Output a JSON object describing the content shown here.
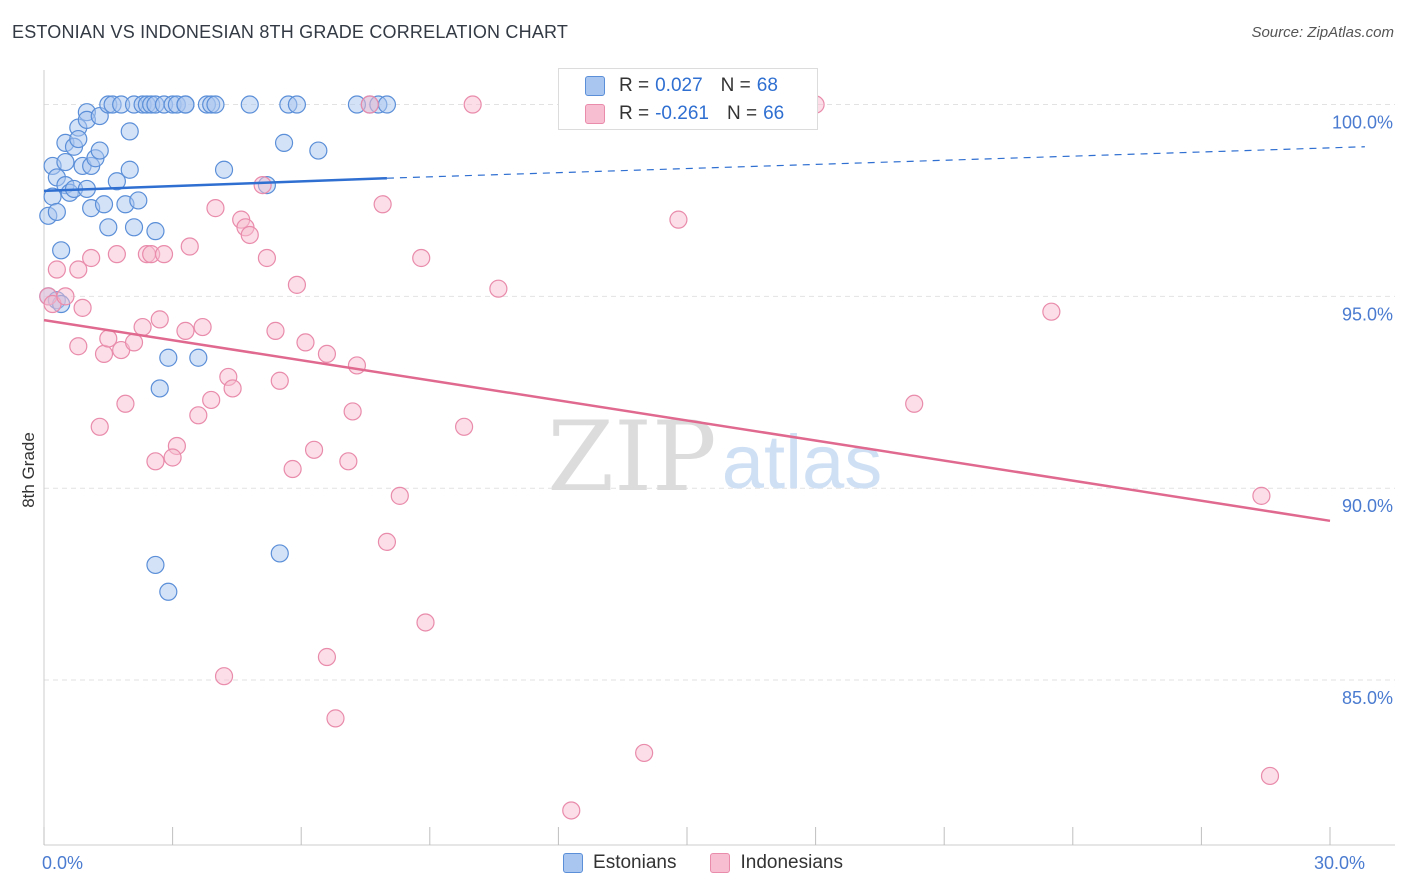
{
  "header": {
    "title": "ESTONIAN VS INDONESIAN 8TH GRADE CORRELATION CHART",
    "source": "Source: ZipAtlas.com"
  },
  "watermark": {
    "zip": "ZIP",
    "atlas": "atlas"
  },
  "legend": {
    "items": [
      {
        "label": "Estonians"
      },
      {
        "label": "Indonesians"
      }
    ]
  },
  "stats": {
    "estonians": {
      "r_label": "R =",
      "r_value": "0.027",
      "n_label": "N =",
      "n_value": "68"
    },
    "indonesians": {
      "r_label": "R =",
      "r_value": "-0.261",
      "n_label": "N =",
      "n_value": "66"
    }
  },
  "colors": {
    "estonian_fill": "#a9c6f0",
    "estonian_stroke": "#5b8fd8",
    "estonian_line": "#2f6fd1",
    "indonesian_fill": "#f7bdd0",
    "indonesian_stroke": "#e98bab",
    "indonesian_line": "#e0698f",
    "tick_label": "#4a7bd0",
    "grid": "#e2e2e2"
  },
  "chart_data": {
    "type": "scatter",
    "title": "ESTONIAN VS INDONESIAN 8TH GRADE CORRELATION CHART",
    "xlabel": "",
    "ylabel": "8th Grade",
    "xlim": [
      0,
      30
    ],
    "ylim": [
      80.7,
      100.9
    ],
    "x_tick_labels": [
      {
        "value": 0,
        "label": "0.0%"
      },
      {
        "value": 30,
        "label": "30.0%"
      }
    ],
    "y_ticks": [
      {
        "value": 85,
        "label": "85.0%"
      },
      {
        "value": 90,
        "label": "90.0%"
      },
      {
        "value": 95,
        "label": "95.0%"
      },
      {
        "value": 100,
        "label": "100.0%"
      }
    ],
    "x_minor_ticks": [
      0,
      3,
      6,
      9,
      12,
      15,
      18,
      21,
      24,
      27,
      30
    ],
    "series": [
      {
        "name": "Estonians",
        "trend": {
          "x_start": 0,
          "y_start": 97.75,
          "x_solid_end": 8,
          "y_solid_end": 98.08,
          "x_end": 31,
          "y_end": 98.9
        },
        "points": [
          [
            0.1,
            97.1
          ],
          [
            0.2,
            97.6
          ],
          [
            0.2,
            98.4
          ],
          [
            0.3,
            97.2
          ],
          [
            0.3,
            98.1
          ],
          [
            0.4,
            96.2
          ],
          [
            0.5,
            99.0
          ],
          [
            0.5,
            98.5
          ],
          [
            0.5,
            97.9
          ],
          [
            0.6,
            97.7
          ],
          [
            0.7,
            98.9
          ],
          [
            0.7,
            97.8
          ],
          [
            0.8,
            99.4
          ],
          [
            0.8,
            99.1
          ],
          [
            0.9,
            98.4
          ],
          [
            1.0,
            99.8
          ],
          [
            1.0,
            99.6
          ],
          [
            1.0,
            97.8
          ],
          [
            1.1,
            98.4
          ],
          [
            1.1,
            97.3
          ],
          [
            1.2,
            98.6
          ],
          [
            1.3,
            99.7
          ],
          [
            1.3,
            98.8
          ],
          [
            1.4,
            97.4
          ],
          [
            1.5,
            96.8
          ],
          [
            1.5,
            100.0
          ],
          [
            1.6,
            100.0
          ],
          [
            1.7,
            98.0
          ],
          [
            1.8,
            100.0
          ],
          [
            1.9,
            97.4
          ],
          [
            2.0,
            99.3
          ],
          [
            2.0,
            98.3
          ],
          [
            2.1,
            96.8
          ],
          [
            2.1,
            100.0
          ],
          [
            2.2,
            97.5
          ],
          [
            2.3,
            100.0
          ],
          [
            2.4,
            100.0
          ],
          [
            2.5,
            100.0
          ],
          [
            2.6,
            100.0
          ],
          [
            2.6,
            96.7
          ],
          [
            2.6,
            88.0
          ],
          [
            2.7,
            92.6
          ],
          [
            2.8,
            100.0
          ],
          [
            2.9,
            87.3
          ],
          [
            2.9,
            93.4
          ],
          [
            3.0,
            100.0
          ],
          [
            3.1,
            100.0
          ],
          [
            3.3,
            100.0
          ],
          [
            3.3,
            100.0
          ],
          [
            3.6,
            93.4
          ],
          [
            3.8,
            100.0
          ],
          [
            3.9,
            100.0
          ],
          [
            4.0,
            100.0
          ],
          [
            4.2,
            98.3
          ],
          [
            4.8,
            100.0
          ],
          [
            5.2,
            97.9
          ],
          [
            5.5,
            88.3
          ],
          [
            5.6,
            99.0
          ],
          [
            5.7,
            100.0
          ],
          [
            5.9,
            100.0
          ],
          [
            6.4,
            98.8
          ],
          [
            7.6,
            100.0
          ],
          [
            7.8,
            100.0
          ],
          [
            0.1,
            95.0
          ],
          [
            0.3,
            94.9
          ],
          [
            0.4,
            94.8
          ],
          [
            8.0,
            100.0
          ],
          [
            7.3,
            100.0
          ]
        ]
      },
      {
        "name": "Indonesians",
        "trend": {
          "x_start": 0,
          "y_start": 94.38,
          "x_end": 30,
          "y_end": 89.15
        },
        "points": [
          [
            0.1,
            95.0
          ],
          [
            0.2,
            94.8
          ],
          [
            0.3,
            95.7
          ],
          [
            0.5,
            95.0
          ],
          [
            0.8,
            95.7
          ],
          [
            0.8,
            93.7
          ],
          [
            0.9,
            94.7
          ],
          [
            1.1,
            96.0
          ],
          [
            1.3,
            91.6
          ],
          [
            1.4,
            93.5
          ],
          [
            1.5,
            93.9
          ],
          [
            1.8,
            93.6
          ],
          [
            1.7,
            96.1
          ],
          [
            1.9,
            92.2
          ],
          [
            2.1,
            93.8
          ],
          [
            2.3,
            94.2
          ],
          [
            2.4,
            96.1
          ],
          [
            2.5,
            96.1
          ],
          [
            2.6,
            90.7
          ],
          [
            2.7,
            94.4
          ],
          [
            2.8,
            96.1
          ],
          [
            3.1,
            91.1
          ],
          [
            3.0,
            90.8
          ],
          [
            3.3,
            94.1
          ],
          [
            3.4,
            96.3
          ],
          [
            3.6,
            91.9
          ],
          [
            3.7,
            94.2
          ],
          [
            3.9,
            92.3
          ],
          [
            4.0,
            97.3
          ],
          [
            4.2,
            85.1
          ],
          [
            4.3,
            92.9
          ],
          [
            4.4,
            92.6
          ],
          [
            4.6,
            97.0
          ],
          [
            4.7,
            96.8
          ],
          [
            4.8,
            96.6
          ],
          [
            5.1,
            97.9
          ],
          [
            5.2,
            96.0
          ],
          [
            5.4,
            94.1
          ],
          [
            5.5,
            92.8
          ],
          [
            5.8,
            90.5
          ],
          [
            5.9,
            95.3
          ],
          [
            6.1,
            93.8
          ],
          [
            6.3,
            91.0
          ],
          [
            6.6,
            85.6
          ],
          [
            6.6,
            93.5
          ],
          [
            6.8,
            84.0
          ],
          [
            7.1,
            90.7
          ],
          [
            7.2,
            92.0
          ],
          [
            7.3,
            93.2
          ],
          [
            7.6,
            100.0
          ],
          [
            7.9,
            97.4
          ],
          [
            8.0,
            88.6
          ],
          [
            8.3,
            89.8
          ],
          [
            8.8,
            96.0
          ],
          [
            8.9,
            86.5
          ],
          [
            9.8,
            91.6
          ],
          [
            10.0,
            100.0
          ],
          [
            10.6,
            95.2
          ],
          [
            12.3,
            81.6
          ],
          [
            14.0,
            83.1
          ],
          [
            14.8,
            97.0
          ],
          [
            18.0,
            100.0
          ],
          [
            20.3,
            92.2
          ],
          [
            23.5,
            94.6
          ],
          [
            28.4,
            89.8
          ],
          [
            28.6,
            82.5
          ]
        ]
      }
    ]
  }
}
